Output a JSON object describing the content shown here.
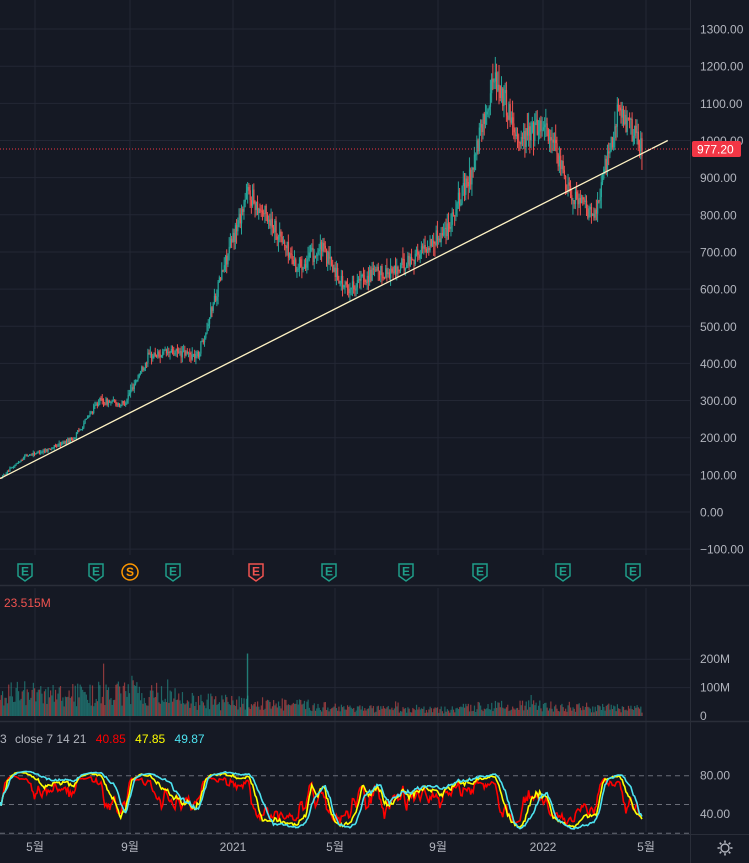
{
  "colors": {
    "background": "#151924",
    "grid": "#232734",
    "separator": "#2a2e39",
    "axis_text": "#b2b5be",
    "up": "#26a69a",
    "down": "#ef5350",
    "trendline": "#fff3c4",
    "last_price": "#f23645",
    "stoch_fast": "#ff0000",
    "stoch_mid": "#ffff00",
    "stoch_slow": "#4de3f0",
    "earnings": "#1f9e89",
    "split": "#ff9800",
    "earnings_red": "#ef5350"
  },
  "chart_data": [
    {
      "type": "candlestick",
      "title": "",
      "x_ticks": [
        "5월",
        "9월",
        "2021",
        "5월",
        "9월",
        "2022",
        "5월"
      ],
      "y_ticks": [
        "1300.00",
        "1200.00",
        "1100.00",
        "1000.00",
        "900.00",
        "800.00",
        "700.00",
        "600.00",
        "500.00",
        "400.00",
        "300.00",
        "200.00",
        "100.00",
        "0.00",
        "−100.00"
      ],
      "ylim": [
        -100,
        1300
      ],
      "last_price_label": "977.20",
      "last_price": 977.2,
      "trendline": {
        "start": [
          "2020-03",
          90
        ],
        "end": [
          "2022-06",
          1000
        ]
      },
      "events": [
        {
          "type": "E",
          "label": "E",
          "color": "green"
        },
        {
          "type": "E",
          "label": "E",
          "color": "green"
        },
        {
          "type": "S",
          "label": "S",
          "color": "orange"
        },
        {
          "type": "E",
          "label": "E",
          "color": "green"
        },
        {
          "type": "E",
          "label": "E",
          "color": "red"
        },
        {
          "type": "E",
          "label": "E",
          "color": "green"
        },
        {
          "type": "E",
          "label": "E",
          "color": "green"
        },
        {
          "type": "E",
          "label": "E",
          "color": "green"
        },
        {
          "type": "E",
          "label": "E",
          "color": "green"
        },
        {
          "type": "E",
          "label": "E",
          "color": "green"
        }
      ],
      "price_path": [
        [
          "2020-03",
          90
        ],
        [
          "2020-04",
          150
        ],
        [
          "2020-05",
          170
        ],
        [
          "2020-06",
          200
        ],
        [
          "2020-07",
          300
        ],
        [
          "2020-08",
          290
        ],
        [
          "2020-09",
          420
        ],
        [
          "2020-10",
          430
        ],
        [
          "2020-11",
          420
        ],
        [
          "2020-12",
          650
        ],
        [
          "2021-01",
          860
        ],
        [
          "2021-02",
          780
        ],
        [
          "2021-03",
          660
        ],
        [
          "2021-04",
          710
        ],
        [
          "2021-05",
          600
        ],
        [
          "2021-06",
          640
        ],
        [
          "2021-07",
          650
        ],
        [
          "2021-08",
          700
        ],
        [
          "2021-09",
          760
        ],
        [
          "2021-10",
          900
        ],
        [
          "2021-11",
          1180
        ],
        [
          "2021-12",
          1000
        ],
        [
          "2022-01",
          1050
        ],
        [
          "2022-02",
          870
        ],
        [
          "2022-03",
          790
        ],
        [
          "2022-04",
          1080
        ],
        [
          "2022-05",
          977
        ]
      ]
    },
    {
      "type": "bar",
      "title": "",
      "label": "23.515M",
      "y_ticks": [
        "200M",
        "100M",
        "0"
      ],
      "ylim": [
        0,
        230
      ],
      "volume_path": [
        [
          "2020-03",
          100
        ],
        [
          "2020-05",
          85
        ],
        [
          "2020-07",
          90
        ],
        [
          "2020-09",
          95
        ],
        [
          "2020-11",
          60
        ],
        [
          "2021-01",
          55
        ],
        [
          "2021-03",
          45
        ],
        [
          "2021-05",
          35
        ],
        [
          "2021-07",
          25
        ],
        [
          "2021-09",
          25
        ],
        [
          "2021-11",
          45
        ],
        [
          "2022-01",
          40
        ],
        [
          "2022-03",
          35
        ],
        [
          "2022-05",
          28
        ]
      ],
      "spike": [
        "2021-01",
        220
      ]
    },
    {
      "type": "line",
      "title": "",
      "label_prefix": "3",
      "label_params": "close 7 14 21",
      "values_text": [
        "40.85",
        "47.85",
        "49.87"
      ],
      "y_ticks": [
        "80.00",
        "40.00"
      ],
      "ylim": [
        10,
        95
      ],
      "levels": [
        80,
        50,
        20
      ],
      "series": [
        {
          "name": "",
          "value": 40.85
        },
        {
          "name": "",
          "value": 47.85
        },
        {
          "name": "",
          "value": 49.87
        }
      ]
    }
  ]
}
